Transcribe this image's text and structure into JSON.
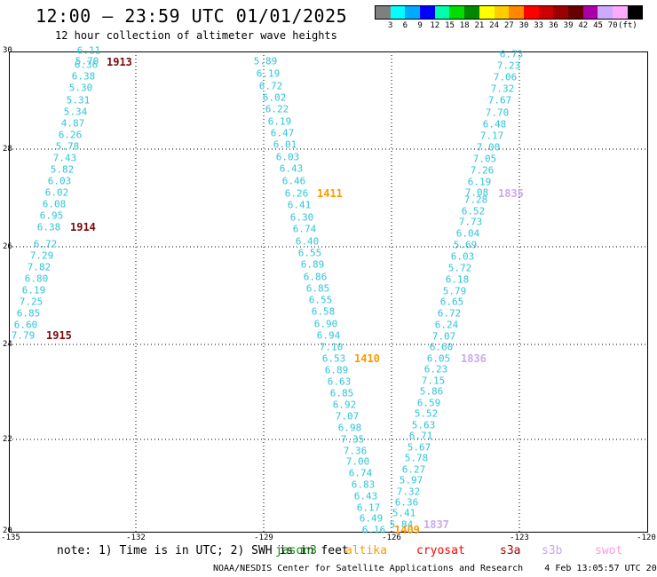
{
  "header": {
    "title": "12:00 – 23:59 UTC 01/01/2025",
    "subtitle": "12 hour collection of altimeter wave heights"
  },
  "scale": {
    "colors": [
      "#7f7f7f",
      "#00ffff",
      "#00aaff",
      "#0000ff",
      "#00ffaa",
      "#00dd00",
      "#008800",
      "#ffff00",
      "#ffcc00",
      "#ff8800",
      "#ff0000",
      "#cc0000",
      "#990000",
      "#660000",
      "#aa00aa",
      "#ccaaff",
      "#ffaaff",
      "#000000"
    ],
    "labels": [
      "3",
      "6",
      "9",
      "12",
      "15",
      "18",
      "21",
      "24",
      "27",
      "30",
      "33",
      "36",
      "39",
      "42",
      "45",
      "70",
      "(ft)"
    ]
  },
  "axes": {
    "y_labels": [
      "30",
      "28",
      "26",
      "24",
      "22",
      "20"
    ],
    "x_labels": [
      "-135",
      "-132",
      "-129",
      "-126",
      "-123",
      "-120"
    ]
  },
  "tracks": [
    {
      "id": "1913",
      "satellite": "s3a",
      "color": "#7a0a0a"
    },
    {
      "id": "1914",
      "satellite": "s3a",
      "color": "#7a0a0a"
    },
    {
      "id": "1915",
      "satellite": "s3a",
      "color": "#7a0a0a"
    },
    {
      "id": "1411",
      "satellite": "altika",
      "color": "#ff9900"
    },
    {
      "id": "1410",
      "satellite": "altika",
      "color": "#ff9900"
    },
    {
      "id": "1409",
      "satellite": "altika",
      "color": "#ff9900"
    },
    {
      "id": "1835",
      "satellite": "s3b",
      "color": "#ccaaee"
    },
    {
      "id": "1836",
      "satellite": "s3b",
      "color": "#ccaaee"
    },
    {
      "id": "1837",
      "satellite": "s3b",
      "color": "#ccaaee"
    }
  ],
  "swh_ft": {
    "track_a": [
      "6.11",
      "5.70",
      "6.36",
      "6.38",
      "5.30",
      "5.31",
      "5.34",
      "4.87",
      "6.26",
      "5.78",
      "7.43",
      "5.82",
      "6.03",
      "6.02",
      "6.08",
      "6.95",
      "6.38",
      "6.72",
      "7.29",
      "7.82",
      "6.80",
      "6.19",
      "7.25",
      "6.85",
      "6.60",
      "7.79"
    ],
    "track_b": [
      "5.89",
      "6.19",
      "6.72",
      "6.02",
      "6.22",
      "6.19",
      "6.47",
      "6.01",
      "6.03",
      "6.43",
      "6.46",
      "6.26",
      "6.41",
      "6.30",
      "6.74",
      "6.40",
      "6.55",
      "6.89",
      "6.86",
      "6.85",
      "6.55",
      "6.58",
      "6.90",
      "6.94",
      "7.10",
      "6.53",
      "6.89",
      "6.63",
      "6.85",
      "6.92",
      "7.07",
      "6.98",
      "7.35",
      "7.36",
      "7.00",
      "6.74",
      "6.83",
      "6.43",
      "6.17",
      "6.49",
      "6.16"
    ],
    "track_c": [
      "6.73",
      "7.23",
      "7.06",
      "7.32",
      "7.67",
      "7.70",
      "6.48",
      "7.17",
      "7.00",
      "7.05",
      "7.26",
      "6.19",
      "7.08",
      "7.28",
      "6.52",
      "7.73",
      "6.04",
      "5.69",
      "6.03",
      "5.72",
      "6.18",
      "5.79",
      "6.65",
      "6.72",
      "6.24",
      "7.07",
      "6.60",
      "6.05",
      "6.23",
      "7.15",
      "5.86",
      "6.59",
      "5.52",
      "5.63",
      "6.71",
      "5.67",
      "5.78",
      "6.27",
      "5.97",
      "7.32",
      "6.36",
      "5.41",
      "5.84"
    ]
  },
  "note": "note: 1) Time is in UTC; 2) SWH is in feet",
  "legend": [
    {
      "label": "jason3",
      "color": "#0b8a0b"
    },
    {
      "label": "altika",
      "color": "#ff9900"
    },
    {
      "label": "cryosat",
      "color": "#ff0000"
    },
    {
      "label": "s3a",
      "color": "#aa0000"
    },
    {
      "label": "s3b",
      "color": "#c8a8f0"
    },
    {
      "label": "swot",
      "color": "#ff99dd"
    }
  ],
  "footer": {
    "credit": "NOAA/NESDIS Center for Satellite Applications and Research",
    "timestamp": "4 Feb 13:05:57 UTC 2025"
  }
}
